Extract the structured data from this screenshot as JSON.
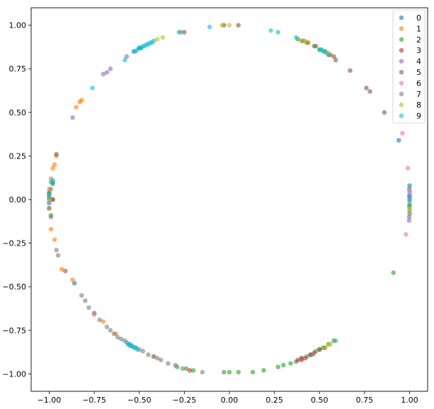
{
  "chart_data": {
    "type": "scatter",
    "xlim": [
      -1.1,
      1.1
    ],
    "ylim": [
      -1.1,
      1.1
    ],
    "x_ticks": [
      -1.0,
      -0.75,
      -0.5,
      -0.25,
      0.0,
      0.25,
      0.5,
      0.75,
      1.0
    ],
    "y_ticks": [
      1.0,
      0.75,
      0.5,
      0.25,
      0.0,
      -0.25,
      -0.5,
      -0.75,
      -1.0
    ],
    "x_tick_labels": [
      "−1.00",
      "−0.75",
      "−0.50",
      "−0.25",
      "0.00",
      "0.25",
      "0.50",
      "0.75",
      "1.00"
    ],
    "y_tick_labels": [
      "1.00",
      "0.75",
      "0.50",
      "0.25",
      "0.00",
      "−0.25",
      "−0.50",
      "−0.75",
      "−1.00"
    ],
    "grid": false,
    "legend_position": "top-right",
    "marker_alpha": 0.6,
    "series": [
      {
        "name": "0",
        "color": "#1f77b4",
        "points": [
          [
            1.0,
            0.08
          ],
          [
            1.0,
            0.0
          ],
          [
            0.999,
            -0.04
          ],
          [
            0.999,
            0.02
          ],
          [
            0.94,
            0.34
          ],
          [
            0.58,
            -0.81
          ],
          [
            -1.0,
            0.04
          ],
          [
            -1.0,
            -0.02
          ],
          [
            -0.98,
            0.1
          ],
          [
            -0.86,
            -0.48
          ],
          [
            -0.52,
            -0.85
          ],
          [
            -0.49,
            0.87
          ],
          [
            -0.5,
            0.87
          ]
        ]
      },
      {
        "name": "1",
        "color": "#ff7f0e",
        "points": [
          [
            -0.99,
            -0.17
          ],
          [
            -0.97,
            -0.23
          ],
          [
            -0.97,
            0.2
          ],
          [
            -0.98,
            0.18
          ],
          [
            -0.96,
            0.25
          ],
          [
            -0.99,
            0.12
          ],
          [
            -1.0,
            -0.05
          ],
          [
            -1.0,
            0.06
          ],
          [
            -0.85,
            0.53
          ],
          [
            -0.83,
            0.56
          ],
          [
            -0.82,
            0.57
          ],
          [
            -0.93,
            -0.4
          ],
          [
            -0.87,
            -0.46
          ],
          [
            -0.75,
            -0.66
          ],
          [
            -0.7,
            -0.7
          ],
          [
            -0.63,
            -0.77
          ],
          [
            -0.42,
            -0.9
          ],
          [
            0.4,
            0.91
          ],
          [
            0.44,
            0.9
          ]
        ]
      },
      {
        "name": "2",
        "color": "#2ca02c",
        "points": [
          [
            0.91,
            -0.42
          ],
          [
            0.998,
            0.06
          ],
          [
            1.0,
            -0.03
          ],
          [
            1.0,
            -0.08
          ],
          [
            0.05,
            -0.99
          ],
          [
            0.0,
            -0.99
          ],
          [
            -0.03,
            -0.99
          ],
          [
            0.13,
            -0.99
          ],
          [
            0.19,
            -0.98
          ],
          [
            0.27,
            -0.96
          ],
          [
            0.3,
            -0.95
          ],
          [
            0.34,
            -0.94
          ],
          [
            0.37,
            -0.93
          ],
          [
            0.43,
            -0.9
          ],
          [
            0.45,
            -0.89
          ],
          [
            0.48,
            -0.87
          ],
          [
            0.5,
            -0.86
          ],
          [
            0.52,
            -0.85
          ],
          [
            0.55,
            -0.83
          ],
          [
            -0.2,
            -0.98
          ],
          [
            -0.24,
            -0.97
          ],
          [
            -0.29,
            -0.96
          ],
          [
            -1.0,
            0.03
          ],
          [
            -0.99,
            -0.09
          ],
          [
            -0.98,
            0.09
          ],
          [
            0.47,
            0.88
          ],
          [
            0.5,
            0.86
          ],
          [
            0.53,
            0.85
          ],
          [
            0.55,
            0.83
          ],
          [
            0.38,
            0.92
          ],
          [
            0.41,
            0.91
          ]
        ]
      },
      {
        "name": "3",
        "color": "#d62728",
        "points": [
          [
            -0.22,
            -0.98
          ],
          [
            0.38,
            -0.92
          ],
          [
            0.42,
            -0.91
          ],
          [
            0.47,
            -0.88
          ],
          [
            0.53,
            -0.85
          ],
          [
            0.4,
            -0.92
          ]
        ]
      },
      {
        "name": "4",
        "color": "#9467bd",
        "points": [
          [
            1.0,
            0.04
          ],
          [
            0.998,
            -0.1
          ],
          [
            0.997,
            -0.12
          ],
          [
            1.0,
            0.01
          ],
          [
            -0.68,
            0.73
          ],
          [
            -0.7,
            0.72
          ],
          [
            -0.66,
            0.75
          ],
          [
            -0.57,
            0.82
          ],
          [
            -0.53,
            0.85
          ],
          [
            -0.87,
            0.47
          ],
          [
            -0.75,
            -0.65
          ],
          [
            -0.98,
            0.0
          ]
        ]
      },
      {
        "name": "5",
        "color": "#8c564b",
        "points": [
          [
            0.05,
            1.0
          ],
          [
            -0.25,
            0.96
          ],
          [
            0.59,
            0.8
          ],
          [
            0.67,
            0.74
          ],
          [
            0.76,
            0.64
          ],
          [
            0.78,
            0.62
          ],
          [
            0.86,
            0.5
          ],
          [
            0.58,
            0.82
          ],
          [
            0.56,
            0.83
          ],
          [
            0.48,
            0.88
          ],
          [
            0.43,
            0.9
          ],
          [
            -0.91,
            -0.41
          ],
          [
            -0.98,
            0.0
          ],
          [
            -1.0,
            0.01
          ],
          [
            0.5,
            -0.86
          ],
          [
            0.45,
            -0.89
          ],
          [
            0.4,
            -0.91
          ],
          [
            -0.96,
            0.26
          ],
          [
            -0.03,
            1.0
          ]
        ]
      },
      {
        "name": "6",
        "color": "#e377c2",
        "points": [
          [
            0.98,
            -0.2
          ],
          [
            0.96,
            0.38
          ],
          [
            0.99,
            0.18
          ],
          [
            1.0,
            0.05
          ],
          [
            1.0,
            0.0
          ]
        ]
      },
      {
        "name": "7",
        "color": "#7f7f7f",
        "points": [
          [
            -0.95,
            -0.32
          ],
          [
            -0.96,
            -0.29
          ],
          [
            -0.99,
            -0.1
          ],
          [
            -1.0,
            -0.05
          ],
          [
            -0.82,
            -0.55
          ],
          [
            -0.8,
            -0.58
          ],
          [
            -0.78,
            -0.62
          ],
          [
            -0.72,
            -0.69
          ],
          [
            -0.68,
            -0.73
          ],
          [
            -0.66,
            -0.75
          ],
          [
            -0.64,
            -0.77
          ],
          [
            -0.62,
            -0.79
          ],
          [
            -0.6,
            -0.8
          ],
          [
            -0.58,
            -0.81
          ],
          [
            -0.56,
            -0.83
          ],
          [
            -0.54,
            -0.84
          ],
          [
            -0.5,
            -0.86
          ],
          [
            -0.48,
            -0.87
          ],
          [
            -0.45,
            -0.89
          ],
          [
            -0.42,
            -0.9
          ],
          [
            -0.4,
            -0.91
          ],
          [
            -0.38,
            -0.92
          ],
          [
            -0.34,
            -0.94
          ],
          [
            -0.3,
            -0.95
          ],
          [
            -0.26,
            -0.97
          ],
          [
            -0.15,
            -0.99
          ],
          [
            -0.27,
            0.96
          ],
          [
            0.4,
            -0.91
          ],
          [
            0.46,
            -0.89
          ],
          [
            1.0,
            -0.06
          ],
          [
            -1.0,
            0.0
          ],
          [
            -0.99,
            0.06
          ],
          [
            -0.55,
            -0.84
          ]
        ]
      },
      {
        "name": "8",
        "color": "#bcbd22",
        "points": [
          [
            -0.04,
            1.0
          ],
          [
            0.0,
            1.0
          ],
          [
            -0.37,
            0.93
          ],
          [
            -0.4,
            0.92
          ],
          [
            0.42,
            0.91
          ],
          [
            0.51,
            0.86
          ],
          [
            0.53,
            0.85
          ],
          [
            0.55,
            0.84
          ],
          [
            0.56,
            -0.83
          ],
          [
            0.58,
            -0.81
          ],
          [
            0.53,
            -0.85
          ],
          [
            1.0,
            -0.05
          ],
          [
            -1.0,
            0.0
          ]
        ]
      },
      {
        "name": "9",
        "color": "#17becf",
        "points": [
          [
            -0.11,
            0.99
          ],
          [
            -0.28,
            0.96
          ],
          [
            0.23,
            0.97
          ],
          [
            0.27,
            0.96
          ],
          [
            0.37,
            0.93
          ],
          [
            0.5,
            0.86
          ],
          [
            0.51,
            0.86
          ],
          [
            0.52,
            0.85
          ],
          [
            0.53,
            0.85
          ],
          [
            0.54,
            0.84
          ],
          [
            -0.44,
            0.9
          ],
          [
            -0.45,
            0.89
          ],
          [
            -0.46,
            0.89
          ],
          [
            -0.47,
            0.88
          ],
          [
            -0.48,
            0.88
          ],
          [
            -0.49,
            0.87
          ],
          [
            -0.5,
            0.87
          ],
          [
            -0.51,
            0.86
          ],
          [
            -0.52,
            0.85
          ],
          [
            -0.53,
            0.85
          ],
          [
            -0.43,
            0.9
          ],
          [
            -0.42,
            0.91
          ],
          [
            -0.58,
            0.8
          ],
          [
            -0.76,
            0.64
          ],
          [
            -0.57,
            -0.82
          ],
          [
            -0.56,
            -0.83
          ],
          [
            -0.55,
            -0.83
          ],
          [
            -0.54,
            -0.84
          ],
          [
            -0.53,
            -0.85
          ],
          [
            -0.52,
            -0.85
          ],
          [
            -0.51,
            -0.86
          ],
          [
            0.59,
            -0.81
          ],
          [
            1.0,
            0.02
          ],
          [
            1.0,
            -0.01
          ],
          [
            -0.99,
            0.1
          ],
          [
            -0.98,
            0.11
          ],
          [
            -1.0,
            0.02
          ]
        ]
      }
    ]
  }
}
